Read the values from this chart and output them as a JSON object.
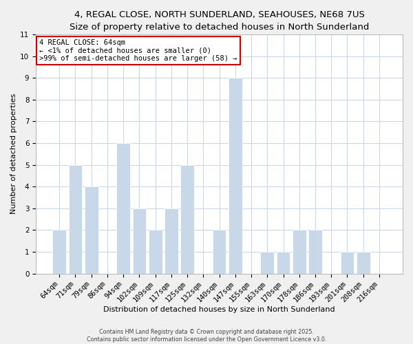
{
  "title": "4, REGAL CLOSE, NORTH SUNDERLAND, SEAHOUSES, NE68 7US",
  "subtitle": "Size of property relative to detached houses in North Sunderland",
  "xlabel": "Distribution of detached houses by size in North Sunderland",
  "ylabel": "Number of detached properties",
  "bar_color": "#c8d8e8",
  "bar_edge_color": "#ffffff",
  "categories": [
    "64sqm",
    "71sqm",
    "79sqm",
    "86sqm",
    "94sqm",
    "102sqm",
    "109sqm",
    "117sqm",
    "125sqm",
    "132sqm",
    "140sqm",
    "147sqm",
    "155sqm",
    "163sqm",
    "170sqm",
    "178sqm",
    "186sqm",
    "193sqm",
    "201sqm",
    "208sqm",
    "216sqm"
  ],
  "values": [
    2,
    5,
    4,
    0,
    6,
    3,
    2,
    3,
    5,
    0,
    2,
    9,
    0,
    1,
    1,
    2,
    2,
    0,
    1,
    1,
    0
  ],
  "ylim": [
    0,
    11
  ],
  "yticks": [
    0,
    1,
    2,
    3,
    4,
    5,
    6,
    7,
    8,
    9,
    10,
    11
  ],
  "annotation_title": "4 REGAL CLOSE: 64sqm",
  "annotation_line1": "← <1% of detached houses are smaller (0)",
  "annotation_line2": ">99% of semi-detached houses are larger (58) →",
  "footer1": "Contains HM Land Registry data © Crown copyright and database right 2025.",
  "footer2": "Contains public sector information licensed under the Open Government Licence v3.0.",
  "background_color": "#f0f0f0",
  "plot_bg_color": "#ffffff",
  "grid_color": "#c8d8e8",
  "ann_box_color": "#cc0000",
  "title_fontsize": 9.5,
  "subtitle_fontsize": 8.5,
  "xlabel_fontsize": 8,
  "ylabel_fontsize": 8,
  "tick_fontsize": 7.5,
  "ann_fontsize": 7.5,
  "footer_fontsize": 5.8
}
